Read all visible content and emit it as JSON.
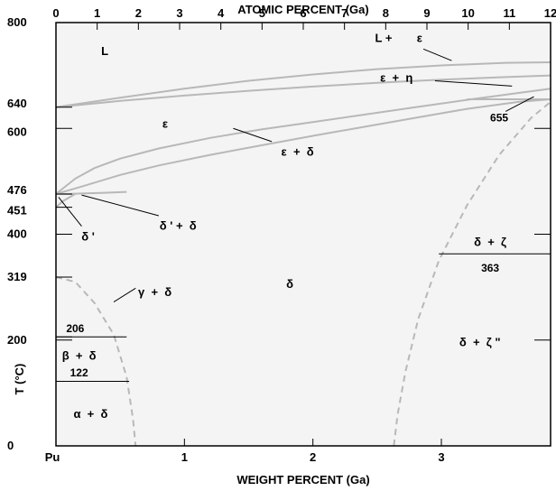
{
  "chart_data": {
    "type": "line",
    "xlabel": "WEIGHT PERCENT (Ga)",
    "x2label": "ATOMIC PERCENT (Ga)",
    "ylabel": "T (°C)",
    "xlim": [
      0,
      3.85
    ],
    "x2lim": [
      0,
      12
    ],
    "ylim": [
      0,
      800
    ],
    "x_left_label": "Pu",
    "x_ticks": [
      {
        "value": 1,
        "label": "1"
      },
      {
        "value": 2,
        "label": "2"
      },
      {
        "value": 3,
        "label": "3"
      }
    ],
    "x2_ticks": [
      {
        "value": 0,
        "label": "0"
      },
      {
        "value": 1,
        "label": "1"
      },
      {
        "value": 2,
        "label": "2"
      },
      {
        "value": 3,
        "label": "3"
      },
      {
        "value": 4,
        "label": "4"
      },
      {
        "value": 5,
        "label": "5"
      },
      {
        "value": 6,
        "label": "6"
      },
      {
        "value": 7,
        "label": "7"
      },
      {
        "value": 8,
        "label": "8"
      },
      {
        "value": 9,
        "label": "9"
      },
      {
        "value": 10,
        "label": "10"
      },
      {
        "value": 11,
        "label": "11"
      },
      {
        "value": 12,
        "label": "12"
      }
    ],
    "y_ticks": [
      {
        "value": 0,
        "label": "0"
      },
      {
        "value": 122,
        "label": ""
      },
      {
        "value": 200,
        "label": "200"
      },
      {
        "value": 206,
        "label": ""
      },
      {
        "value": 319,
        "label": "319"
      },
      {
        "value": 400,
        "label": "400"
      },
      {
        "value": 451,
        "label": "451"
      },
      {
        "value": 476,
        "label": "476"
      },
      {
        "value": 600,
        "label": "600"
      },
      {
        "value": 640,
        "label": "640"
      },
      {
        "value": 800,
        "label": "800"
      }
    ],
    "series": [
      {
        "style": "solid",
        "x": [
          0,
          0.5,
          1.0,
          1.5,
          2.0,
          2.5,
          3.0,
          3.5,
          3.85
        ],
        "y": [
          640,
          658,
          675,
          690,
          702,
          712,
          719,
          724,
          725
        ]
      },
      {
        "style": "solid",
        "x": [
          0,
          0.5,
          1.0,
          1.5,
          2.0,
          2.5,
          3.0,
          3.5,
          3.85
        ],
        "y": [
          640,
          652,
          662,
          671,
          679,
          686,
          692,
          697,
          700
        ]
      },
      {
        "style": "solid",
        "x": [
          0,
          0.15,
          0.3,
          0.5,
          0.8,
          1.2,
          1.6,
          2.0,
          2.4,
          2.8,
          3.2,
          3.6,
          3.85
        ],
        "y": [
          476,
          505,
          525,
          543,
          562,
          582,
          598,
          612,
          626,
          640,
          654,
          667,
          675
        ]
      },
      {
        "style": "solid",
        "x": [
          0,
          0.2,
          0.5,
          0.8,
          1.2,
          1.6,
          2.0,
          2.4,
          2.8,
          3.2,
          3.6,
          3.85
        ],
        "y": [
          476,
          490,
          512,
          530,
          550,
          568,
          586,
          603,
          620,
          637,
          650,
          655
        ]
      },
      {
        "style": "solid",
        "x": [
          0,
          0.1,
          0.2,
          0.35,
          0.55
        ],
        "y": [
          476,
          476,
          477,
          478,
          480
        ]
      },
      {
        "style": "solid",
        "x": [
          0,
          0.05,
          0.15
        ],
        "y": [
          451,
          462,
          476
        ]
      },
      {
        "style": "solid",
        "x": [
          3.2,
          3.5,
          3.85
        ],
        "y": [
          655,
          655,
          655
        ]
      },
      {
        "style": "dashed",
        "x": [
          0,
          0.15,
          0.3,
          0.45,
          0.55,
          0.6,
          0.62
        ],
        "y": [
          319,
          310,
          270,
          210,
          130,
          50,
          0
        ]
      },
      {
        "style": "dashed",
        "x": [
          2.63,
          2.66,
          2.72,
          2.82,
          2.98,
          3.2,
          3.45,
          3.7,
          3.85
        ],
        "y": [
          0,
          60,
          140,
          240,
          350,
          455,
          550,
          620,
          650
        ]
      },
      {
        "style": "thin",
        "x": [
          0,
          0.55
        ],
        "y": [
          206,
          206
        ]
      },
      {
        "style": "thin",
        "x": [
          0,
          0.57
        ],
        "y": [
          122,
          122
        ]
      },
      {
        "style": "thin",
        "x": [
          2.98,
          3.85
        ],
        "y": [
          363,
          363
        ]
      }
    ],
    "regions": [
      {
        "label": "L",
        "x": 0.38,
        "y": 745
      },
      {
        "label": "L +",
        "x": 2.55,
        "y": 770
      },
      {
        "label": "ε",
        "x": 2.83,
        "y": 770
      },
      {
        "label": "ε  +  η",
        "x": 2.65,
        "y": 695
      },
      {
        "label": "655",
        "x": 3.45,
        "y": 620
      },
      {
        "label": "ε",
        "x": 0.85,
        "y": 608
      },
      {
        "label": "ε  +  δ",
        "x": 1.88,
        "y": 555
      },
      {
        "label": "δ ' +  δ",
        "x": 0.95,
        "y": 415
      },
      {
        "label": "δ '",
        "x": 0.25,
        "y": 395
      },
      {
        "label": "δ",
        "x": 1.82,
        "y": 305
      },
      {
        "label": "δ  +  ζ",
        "x": 3.38,
        "y": 385
      },
      {
        "label": "363",
        "x": 3.38,
        "y": 336
      },
      {
        "label": "γ  +  δ",
        "x": 0.77,
        "y": 290
      },
      {
        "label": "206",
        "x": 0.15,
        "y": 222
      },
      {
        "label": "β  +  δ",
        "x": 0.18,
        "y": 170
      },
      {
        "label": "122",
        "x": 0.18,
        "y": 138
      },
      {
        "label": "α  +  δ",
        "x": 0.27,
        "y": 60
      },
      {
        "label": "δ  +  ζ \"",
        "x": 3.3,
        "y": 195
      }
    ],
    "leaders": [
      {
        "x1": 2.86,
        "y1": 750,
        "x2": 3.08,
        "y2": 728
      },
      {
        "x1": 2.95,
        "y1": 690,
        "x2": 3.55,
        "y2": 680
      },
      {
        "x1": 3.5,
        "y1": 632,
        "x2": 3.72,
        "y2": 660
      },
      {
        "x1": 1.68,
        "y1": 575,
        "x2": 1.38,
        "y2": 600
      },
      {
        "x1": 0.8,
        "y1": 435,
        "x2": 0.2,
        "y2": 474
      },
      {
        "x1": 0.2,
        "y1": 415,
        "x2": 0.02,
        "y2": 470
      },
      {
        "x1": 0.62,
        "y1": 298,
        "x2": 0.45,
        "y2": 272
      }
    ]
  }
}
